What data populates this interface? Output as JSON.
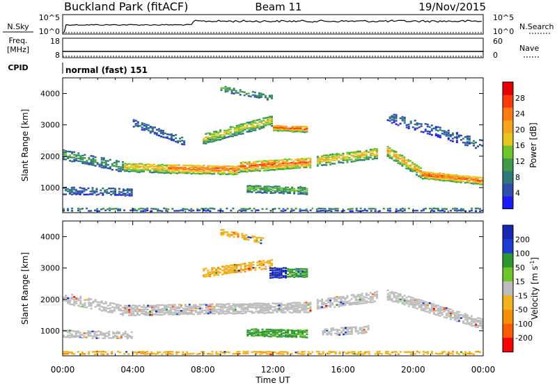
{
  "header": {
    "station": "Buckland Park (fitACF)",
    "beam": "Beam 11",
    "date": "19/Nov/2015"
  },
  "noise_panel": {
    "left_label": "N.Sky",
    "left_top_tick": "10^5",
    "left_bottom_tick": "10^0",
    "right_label": "N.Search",
    "right_top_tick": "10^5",
    "right_bottom_tick": "10^0"
  },
  "freq_panel": {
    "left_label_line1": "Freq.",
    "left_label_line2": "[MHz]",
    "left_top_tick": "18",
    "left_bottom_tick": "8",
    "right_label": "Nave",
    "right_top_tick": "60",
    "right_bottom_tick": "0"
  },
  "cpid": {
    "label": "CPID",
    "value": "normal (fast) 151"
  },
  "colors": {
    "power_scale": [
      "#1a1aff",
      "#2e4fb0",
      "#2f7a78",
      "#3f9a4a",
      "#6cc52a",
      "#e8c51a",
      "#f7a51e",
      "#ff7a10",
      "#ff3a0a",
      "#e60000"
    ],
    "velocity_scale": [
      "#ff0000",
      "#ff5a00",
      "#f79000",
      "#f2b21e",
      "#bcbcbc",
      "#6cc52a",
      "#2e9a2e",
      "#1e3cd4",
      "#1428b4"
    ],
    "ground_scatter": "#bcbcbc"
  },
  "chart_data": [
    {
      "type": "heatmap",
      "title": "",
      "xlabel": "",
      "ylabel": "Slant Range [km]",
      "x_range_hours": [
        0,
        24
      ],
      "ylim": [
        200,
        4500
      ],
      "y_ticks": [
        1000,
        2000,
        3000,
        4000
      ],
      "y_tick_labels": [
        "1000",
        "2000",
        "3000",
        "4000"
      ],
      "colorbar": {
        "label": "Power [dB]",
        "ticks": [
          4,
          8,
          12,
          16,
          20,
          24,
          28
        ],
        "tick_labels": [
          "4",
          "8",
          "12",
          "16",
          "20",
          "24",
          "28"
        ],
        "range": [
          0,
          32
        ]
      },
      "echo_bands": [
        {
          "t": [
            0.0,
            24.0
          ],
          "r_center": [
            350,
            350
          ],
          "r_width": 120,
          "power": 10,
          "density": 0.6
        },
        {
          "t": [
            0.0,
            3.5
          ],
          "r_center": [
            2100,
            1700
          ],
          "r_width": 350,
          "power": 12,
          "density": 0.7
        },
        {
          "t": [
            3.5,
            6.0
          ],
          "r_center": [
            1700,
            1650
          ],
          "r_width": 300,
          "power": 22,
          "density": 0.95
        },
        {
          "t": [
            6.0,
            10.0
          ],
          "r_center": [
            1650,
            1600
          ],
          "r_width": 300,
          "power": 27,
          "density": 0.95
        },
        {
          "t": [
            10.0,
            14.2
          ],
          "r_center": [
            1700,
            1850
          ],
          "r_width": 350,
          "power": 26,
          "density": 0.95
        },
        {
          "t": [
            14.5,
            18.0
          ],
          "r_center": [
            1900,
            2150
          ],
          "r_width": 350,
          "power": 20,
          "density": 0.85
        },
        {
          "t": [
            18.5,
            20.5
          ],
          "r_center": [
            2200,
            1500
          ],
          "r_width": 350,
          "power": 22,
          "density": 0.9
        },
        {
          "t": [
            20.5,
            24.0
          ],
          "r_center": [
            1450,
            1250
          ],
          "r_width": 250,
          "power": 27,
          "density": 0.95
        },
        {
          "t": [
            8.0,
            12.0
          ],
          "r_center": [
            2600,
            3200
          ],
          "r_width": 350,
          "power": 18,
          "density": 0.8
        },
        {
          "t": [
            12.0,
            14.0
          ],
          "r_center": [
            2950,
            2900
          ],
          "r_width": 200,
          "power": 27,
          "density": 0.95
        },
        {
          "t": [
            9.0,
            12.0
          ],
          "r_center": [
            4200,
            3900
          ],
          "r_width": 200,
          "power": 12,
          "density": 0.6
        },
        {
          "t": [
            10.5,
            14.0
          ],
          "r_center": [
            1000,
            950
          ],
          "r_width": 250,
          "power": 14,
          "density": 0.8
        },
        {
          "t": [
            4.0,
            7.0
          ],
          "r_center": [
            3100,
            2500
          ],
          "r_width": 250,
          "power": 8,
          "density": 0.5
        },
        {
          "t": [
            18.5,
            24.0
          ],
          "r_center": [
            3300,
            2400
          ],
          "r_width": 350,
          "power": 7,
          "density": 0.5
        },
        {
          "t": [
            0.0,
            4.0
          ],
          "r_center": [
            950,
            900
          ],
          "r_width": 250,
          "power": 8,
          "density": 0.55
        }
      ]
    },
    {
      "type": "heatmap",
      "title": "",
      "xlabel": "Time UT",
      "ylabel": "Slant Range [km]",
      "x_range_hours": [
        0,
        24
      ],
      "x_ticks": [
        0,
        4,
        8,
        12,
        16,
        20,
        24
      ],
      "x_tick_labels": [
        "00:00",
        "04:00",
        "08:00",
        "12:00",
        "16:00",
        "20:00",
        "00:00"
      ],
      "ylim": [
        200,
        4500
      ],
      "y_ticks": [
        1000,
        2000,
        3000,
        4000
      ],
      "y_tick_labels": [
        "1000",
        "2000",
        "3000",
        "4000"
      ],
      "colorbar": {
        "label": "Velocity [m s^-1]",
        "ticks": [
          200,
          100,
          50,
          15,
          -15,
          -50,
          -100,
          -200
        ],
        "tick_labels": [
          "200",
          "100",
          "50",
          "15",
          "-15",
          "-50",
          "-100",
          "-200"
        ]
      },
      "echo_bands": [
        {
          "t": [
            0.0,
            24.0
          ],
          "r_center": [
            350,
            350
          ],
          "r_width": 120,
          "velocity": -40,
          "density": 0.6
        },
        {
          "t": [
            0.0,
            3.5
          ],
          "r_center": [
            2100,
            1700
          ],
          "r_width": 350,
          "velocity": 0,
          "density": 0.6
        },
        {
          "t": [
            3.5,
            14.2
          ],
          "r_center": [
            1700,
            1800
          ],
          "r_width": 350,
          "velocity": 0,
          "density": 0.85
        },
        {
          "t": [
            14.5,
            18.0
          ],
          "r_center": [
            1900,
            2150
          ],
          "r_width": 350,
          "velocity": 0,
          "density": 0.8
        },
        {
          "t": [
            18.5,
            24.0
          ],
          "r_center": [
            2200,
            1250
          ],
          "r_width": 350,
          "velocity": 0,
          "density": 0.8
        },
        {
          "t": [
            8.0,
            12.0
          ],
          "r_center": [
            2900,
            3200
          ],
          "r_width": 300,
          "velocity": -40,
          "density": 0.75
        },
        {
          "t": [
            11.8,
            12.8
          ],
          "r_center": [
            2900,
            2900
          ],
          "r_width": 350,
          "velocity": 220,
          "density": 0.95
        },
        {
          "t": [
            12.8,
            14.0
          ],
          "r_center": [
            2900,
            2900
          ],
          "r_width": 300,
          "velocity": 70,
          "density": 0.95
        },
        {
          "t": [
            9.0,
            11.5
          ],
          "r_center": [
            4200,
            3900
          ],
          "r_width": 200,
          "velocity": -40,
          "density": 0.55
        },
        {
          "t": [
            10.5,
            14.0
          ],
          "r_center": [
            1000,
            950
          ],
          "r_width": 250,
          "velocity": 60,
          "density": 0.85
        },
        {
          "t": [
            0.0,
            4.0
          ],
          "r_center": [
            950,
            900
          ],
          "r_width": 250,
          "velocity": 0,
          "density": 0.6
        },
        {
          "t": [
            14.8,
            17.5
          ],
          "r_center": [
            1000,
            1100
          ],
          "r_width": 250,
          "velocity": 0,
          "density": 0.6
        }
      ]
    }
  ]
}
